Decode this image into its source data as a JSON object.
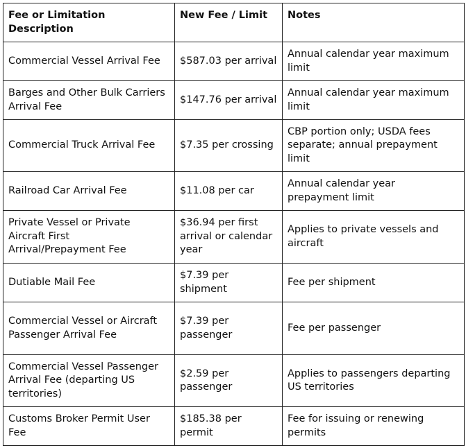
{
  "table": {
    "header": [
      "Fee or Limitation Description",
      "New Fee / Limit",
      "Notes"
    ],
    "rows": [
      [
        "Commercial Vessel Arrival Fee",
        "$587.03 per arrival",
        "Annual calendar year maximum limit"
      ],
      [
        "Barges and Other Bulk Carriers Arrival Fee",
        "$147.76 per arrival",
        "Annual calendar year maximum limit"
      ],
      [
        "Commercial Truck Arrival Fee",
        "$7.35 per crossing",
        "CBP portion only; USDA fees separate; annual prepayment limit"
      ],
      [
        "Railroad Car Arrival Fee",
        "$11.08 per car",
        "Annual calendar year prepayment limit"
      ],
      [
        "Private Vessel or Private Aircraft First Arrival/Prepayment Fee",
        "$36.94 per first arrival or calendar year",
        "Applies to private vessels and aircraft"
      ],
      [
        "Dutiable Mail Fee",
        "$7.39 per shipment",
        "Fee per shipment"
      ],
      [
        "Commercial Vessel or Aircraft Passenger Arrival Fee",
        "$7.39 per passenger",
        "Fee per passenger"
      ],
      [
        "Commercial Vessel Passenger Arrival Fee (departing US territories)",
        "$2.59 per passenger",
        "Applies to passengers departing US territories"
      ],
      [
        "Customs Broker Permit User Fee",
        "$185.38 per permit",
        "Fee for issuing or renewing permits"
      ]
    ]
  }
}
